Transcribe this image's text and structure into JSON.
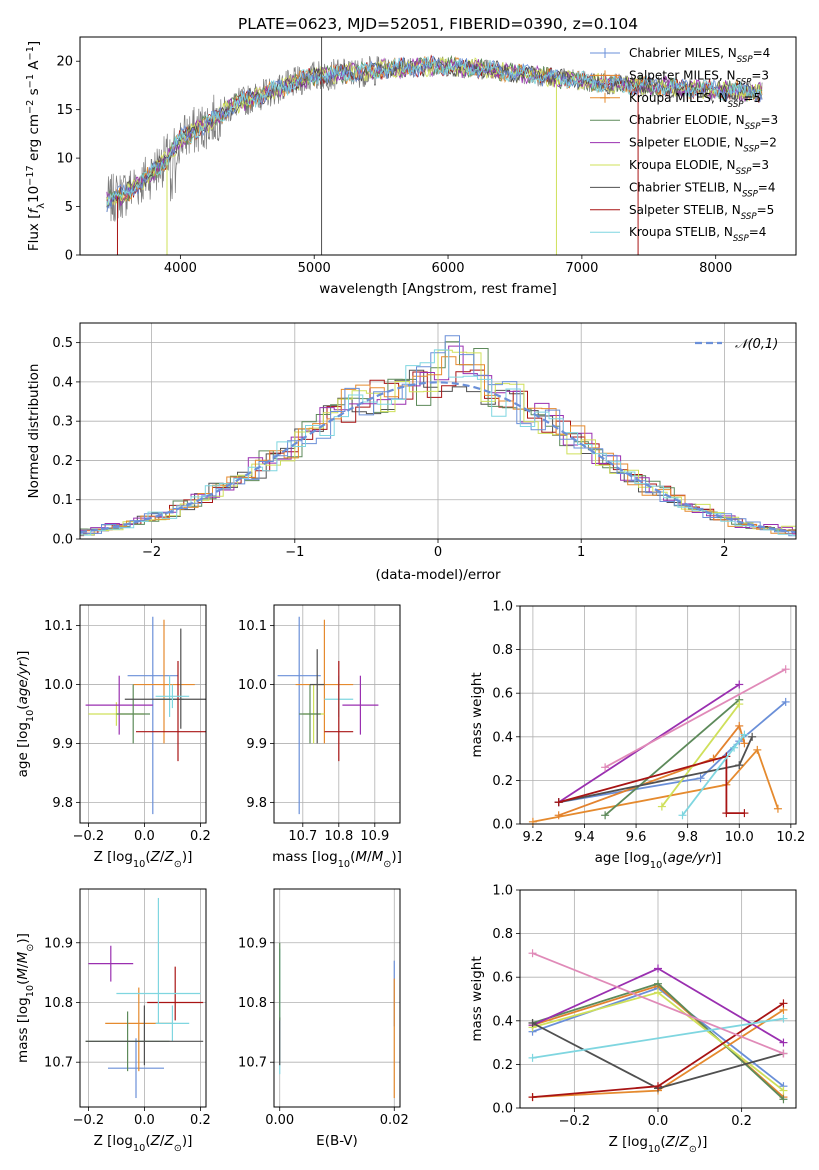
{
  "figure": {
    "title": "PLATE=0623, MJD=52051, FIBERID=0390, z=0.104"
  },
  "model_colors": [
    "#6a8fd8",
    "#e3822e",
    "#e58a2e",
    "#5d8a5a",
    "#9a2fb0",
    "#cfe05a",
    "#505050",
    "#a81414",
    "#7fd6e0"
  ],
  "chart_data": [
    {
      "id": "spectrum",
      "type": "line",
      "xlabel": "wavelength [Angstrom, rest frame]",
      "ylabel": "Flux [f_λ 10^-17 erg cm^-2 s^-1 A^-1]",
      "xlim": [
        3250,
        8600
      ],
      "ylim": [
        0,
        22.5
      ],
      "xticks": [
        4000,
        5000,
        6000,
        7000,
        8000
      ],
      "yticks": [
        0,
        5,
        10,
        15,
        20
      ],
      "grid": false,
      "legend_position": "top-right",
      "legend": [
        {
          "label": "Chabrier MILES, N",
          "sub": "SSP",
          "value": "=4",
          "color": "#6a8fd8"
        },
        {
          "label": "Salpeter MILES, N",
          "sub": "SSP",
          "value": "=3",
          "color": "#e3822e"
        },
        {
          "label": "Kroupa MILES, N",
          "sub": "SSP",
          "value": "=5",
          "color": "#e58a2e"
        },
        {
          "label": "Chabrier ELODIE, N",
          "sub": "SSP",
          "value": "=3",
          "color": "#5d8a5a"
        },
        {
          "label": "Salpeter ELODIE, N",
          "sub": "SSP",
          "value": "=2",
          "color": "#9a2fb0"
        },
        {
          "label": "Kroupa ELODIE, N",
          "sub": "SSP",
          "value": "=3",
          "color": "#cfe05a"
        },
        {
          "label": "Chabrier STELIB, N",
          "sub": "SSP",
          "value": "=4",
          "color": "#505050"
        },
        {
          "label": "Salpeter STELIB, N",
          "sub": "SSP",
          "value": "=5",
          "color": "#a81414"
        },
        {
          "label": "Kroupa STELIB, N",
          "sub": "SSP",
          "value": "=4",
          "color": "#7fd6e0"
        }
      ],
      "continuum": [
        [
          3450,
          5.5
        ],
        [
          3600,
          6.5
        ],
        [
          3750,
          8
        ],
        [
          3900,
          10
        ],
        [
          4000,
          12
        ],
        [
          4200,
          13.5
        ],
        [
          4400,
          15.5
        ],
        [
          4700,
          17
        ],
        [
          5000,
          18.5
        ],
        [
          5300,
          18.8
        ],
        [
          5600,
          19.3
        ],
        [
          5900,
          19.5
        ],
        [
          6200,
          19.3
        ],
        [
          6500,
          18.8
        ],
        [
          6800,
          18.3
        ],
        [
          7100,
          17.8
        ],
        [
          7400,
          17.5
        ],
        [
          7700,
          17.3
        ],
        [
          8000,
          17
        ],
        [
          8350,
          16.8
        ]
      ],
      "wavelength_range": [
        3450,
        8350
      ]
    },
    {
      "id": "residuals",
      "type": "line",
      "xlabel": "(data-model)/error",
      "ylabel": "Normed distribution",
      "xlim": [
        -2.5,
        2.5
      ],
      "ylim": [
        0,
        0.55
      ],
      "xticks": [
        -2,
        -1,
        0,
        1,
        2
      ],
      "yticks": [
        0.0,
        0.1,
        0.2,
        0.3,
        0.4,
        0.5
      ],
      "grid": true,
      "legend_position": "top-right",
      "legend": [
        {
          "label": "𝒩(0,1)",
          "color": "#6a8fd8",
          "style": "dashed"
        }
      ],
      "bin_width": 0.1
    },
    {
      "id": "age-vs-z",
      "type": "scatter",
      "xlabel": "Z [log10(Z/Z⊙)]",
      "ylabel": "age [log10(age/yr)]",
      "xlim": [
        -0.23,
        0.22
      ],
      "ylim": [
        9.765,
        10.135
      ],
      "xticks": [
        -0.2,
        0.0,
        0.2
      ],
      "yticks": [
        9.8,
        9.9,
        10.0,
        10.1
      ],
      "grid": true,
      "points": [
        {
          "x": 0.03,
          "y": 10.015,
          "xerr": 0.09,
          "yerr_lo": 0.235,
          "yerr_hi": 0.1
        },
        {
          "x": 0.07,
          "y": 10.0,
          "xerr": 0.11,
          "yerr_lo": 0.1,
          "yerr_hi": 0.11
        },
        {
          "x": 0.09,
          "y": 9.975,
          "xerr": 0.05,
          "yerr_lo": 0.03,
          "yerr_hi": 0.04
        },
        {
          "x": -0.1,
          "y": 9.95,
          "xerr": 0.1,
          "yerr_lo": 0.02,
          "yerr_hi": 0.02
        },
        {
          "x": -0.09,
          "y": 9.965,
          "xerr": 0.12,
          "yerr_lo": 0.05,
          "yerr_hi": 0.05
        },
        {
          "x": -0.04,
          "y": 9.95,
          "xerr": 0.06,
          "yerr_lo": 0.05,
          "yerr_hi": 0.05
        },
        {
          "x": 0.13,
          "y": 9.975,
          "xerr": 0.2,
          "yerr_lo": 0.05,
          "yerr_hi": 0.12
        },
        {
          "x": 0.12,
          "y": 9.92,
          "xerr": 0.15,
          "yerr_lo": 0.05,
          "yerr_hi": 0.12
        },
        {
          "x": 0.1,
          "y": 9.98,
          "xerr": 0.06,
          "yerr_lo": 0.02,
          "yerr_hi": 0.02
        }
      ]
    },
    {
      "id": "age-vs-mass",
      "type": "scatter",
      "xlabel": "mass [log10(M/M⊙)]",
      "ylabel": "",
      "xlim": [
        10.62,
        10.97
      ],
      "ylim": [
        9.765,
        10.135
      ],
      "xticks": [
        10.7,
        10.8,
        10.9
      ],
      "yticks": [
        9.8,
        9.9,
        10.0,
        10.1
      ],
      "grid": true,
      "points": [
        {
          "x": 10.69,
          "y": 10.015,
          "xerr": 0.06,
          "yerr_lo": 0.235,
          "yerr_hi": 0.1
        },
        {
          "x": 10.76,
          "y": 10.0,
          "xerr": 0.08,
          "yerr_lo": 0.1,
          "yerr_hi": 0.11
        },
        {
          "x": 10.8,
          "y": 9.975,
          "xerr": 0.04,
          "yerr_lo": 0.03,
          "yerr_hi": 0.04
        },
        {
          "x": 10.73,
          "y": 9.95,
          "xerr": 0.03,
          "yerr_lo": 0.05,
          "yerr_hi": 0.05
        },
        {
          "x": 10.86,
          "y": 9.965,
          "xerr": 0.05,
          "yerr_lo": 0.05,
          "yerr_hi": 0.05
        },
        {
          "x": 10.72,
          "y": 9.95,
          "xerr": 0.03,
          "yerr_lo": 0.05,
          "yerr_hi": 0.05
        },
        {
          "x": 10.74,
          "y": 10.0,
          "xerr": 0.02,
          "yerr_lo": 0.1,
          "yerr_hi": 0.06
        },
        {
          "x": 10.8,
          "y": 9.92,
          "xerr": 0.04,
          "yerr_lo": 0.05,
          "yerr_hi": 0.12
        },
        {
          "x": 10.85,
          "y": 10.055,
          "xerr": 0.09,
          "yerr_lo": 0.06,
          "yerr_hi": 0.06
        }
      ]
    },
    {
      "id": "massweight-vs-age",
      "type": "line",
      "xlabel": "age [log10(age/yr)]",
      "ylabel": "mass weight",
      "xlim": [
        9.15,
        10.22
      ],
      "ylim": [
        0,
        1
      ],
      "xticks": [
        9.2,
        9.4,
        9.6,
        9.8,
        10.0,
        10.2
      ],
      "yticks": [
        0.0,
        0.2,
        0.4,
        0.6,
        0.8,
        1.0
      ],
      "grid": true,
      "series": [
        {
          "x": [
            9.3,
            9.85,
            10.0,
            10.18
          ],
          "y": [
            0.1,
            0.21,
            0.38,
            0.56
          ]
        },
        {
          "x": [
            9.2,
            9.95,
            10.07,
            10.15
          ],
          "y": [
            0.01,
            0.18,
            0.34,
            0.07
          ]
        },
        {
          "x": [
            9.3,
            9.9,
            10.0,
            10.02
          ],
          "y": [
            0.04,
            0.3,
            0.45,
            0.37
          ]
        },
        {
          "x": [
            9.48,
            10.0
          ],
          "y": [
            0.04,
            0.57
          ]
        },
        {
          "x": [
            9.3,
            10.0
          ],
          "y": [
            0.1,
            0.64
          ]
        },
        {
          "x": [
            9.7,
            10.0
          ],
          "y": [
            0.08,
            0.55
          ]
        },
        {
          "x": [
            9.3,
            10.0,
            10.05
          ],
          "y": [
            0.1,
            0.27,
            0.4
          ]
        },
        {
          "x": [
            9.3,
            9.95,
            9.95,
            10.02
          ],
          "y": [
            0.1,
            0.31,
            0.05,
            0.05
          ]
        },
        {
          "x": [
            9.78,
            9.98,
            10.02
          ],
          "y": [
            0.04,
            0.35,
            0.41
          ]
        },
        {
          "x": [
            9.48,
            10.18
          ],
          "y": [
            0.26,
            0.71
          ]
        }
      ]
    },
    {
      "id": "mass-vs-z",
      "type": "scatter",
      "xlabel": "Z [log10(Z/Z⊙)]",
      "ylabel": "mass [log10(M/M⊙)]",
      "xlim": [
        -0.23,
        0.22
      ],
      "ylim": [
        10.625,
        10.99
      ],
      "xticks": [
        -0.2,
        0.0,
        0.2
      ],
      "yticks": [
        10.7,
        10.8,
        10.9
      ],
      "grid": true,
      "points": [
        {
          "x": -0.03,
          "y": 10.69,
          "xerr": 0.1,
          "yerr_lo": 0.05,
          "yerr_hi": 0.05
        },
        {
          "x": -0.02,
          "y": 10.765,
          "xerr": 0.12,
          "yerr_lo": 0.08,
          "yerr_hi": 0.06
        },
        {
          "x": 0.1,
          "y": 10.765,
          "xerr": 0.06,
          "yerr_lo": 0.03,
          "yerr_hi": 0.03
        },
        {
          "x": -0.06,
          "y": 10.735,
          "xerr": 0.15,
          "yerr_lo": 0.05,
          "yerr_hi": 0.05
        },
        {
          "x": -0.12,
          "y": 10.865,
          "xerr": 0.08,
          "yerr_lo": 0.03,
          "yerr_hi": 0.03
        },
        {
          "x": -0.08,
          "y": 10.815,
          "xerr": 0.04,
          "yerr_lo": 0.05,
          "yerr_hi": 0.05
        },
        {
          "x": 0.0,
          "y": 10.735,
          "xerr": 0.21,
          "yerr_lo": 0.04,
          "yerr_hi": 0.06
        },
        {
          "x": 0.11,
          "y": 10.8,
          "xerr": 0.1,
          "yerr_lo": 0.03,
          "yerr_hi": 0.06
        },
        {
          "x": 0.05,
          "y": 10.815,
          "xerr": 0.15,
          "yerr_lo": 0.05,
          "yerr_hi": 0.16
        }
      ]
    },
    {
      "id": "mass-vs-ebv",
      "type": "scatter",
      "xlabel": "E(B-V)",
      "ylabel": "",
      "xlim": [
        -0.001,
        0.021
      ],
      "ylim": [
        10.625,
        10.99
      ],
      "xticks": [
        0.0,
        0.02
      ],
      "yticks": [
        10.7,
        10.8,
        10.9
      ],
      "grid": true,
      "points": [
        {
          "x": 0.02,
          "y": 10.8,
          "xerr": 0,
          "yerr_lo": 0.04,
          "yerr_hi": 0.07
        },
        {
          "x": 0.02,
          "y": 10.76,
          "xerr": 0,
          "yerr_lo": 0.12,
          "yerr_hi": 0.08
        },
        {
          "x": 0.0,
          "y": 10.79,
          "xerr": 0,
          "yerr_lo": 0.11,
          "yerr_hi": 0.1
        },
        {
          "x": 0.0,
          "y": 10.735,
          "xerr": 0,
          "yerr_lo": 0.04,
          "yerr_hi": 0.04
        },
        {
          "x": 0.0,
          "y": 10.82,
          "xerr": 0,
          "yerr_lo": 0.05,
          "yerr_hi": 0.08
        },
        {
          "x": 0.006,
          "y": 10.85,
          "xerr": 0,
          "yerr_lo": 0.12,
          "yerr_hi": 0.12
        }
      ]
    },
    {
      "id": "massweight-vs-z",
      "type": "line",
      "xlabel": "Z [log10(Z/Z⊙)]",
      "ylabel": "mass weight",
      "xlim": [
        -0.33,
        0.33
      ],
      "ylim": [
        0,
        1
      ],
      "xticks": [
        -0.2,
        0.0,
        0.2
      ],
      "yticks": [
        0.0,
        0.2,
        0.4,
        0.6,
        0.8,
        1.0
      ],
      "grid": true,
      "series": [
        {
          "x": [
            -0.3,
            0.0,
            0.3
          ],
          "y": [
            0.35,
            0.55,
            0.1
          ]
        },
        {
          "x": [
            -0.3,
            0.0,
            0.3
          ],
          "y": [
            0.05,
            0.08,
            0.45
          ]
        },
        {
          "x": [
            -0.3,
            0.0,
            0.3
          ],
          "y": [
            0.38,
            0.56,
            0.05
          ]
        },
        {
          "x": [
            -0.3,
            0.0,
            0.3
          ],
          "y": [
            0.39,
            0.57,
            0.04
          ]
        },
        {
          "x": [
            -0.3,
            0.0,
            0.3
          ],
          "y": [
            0.38,
            0.64,
            0.3
          ]
        },
        {
          "x": [
            -0.3,
            0.0,
            0.3
          ],
          "y": [
            0.37,
            0.53,
            0.08
          ]
        },
        {
          "x": [
            -0.3,
            0.0,
            0.3
          ],
          "y": [
            0.39,
            0.09,
            0.25
          ]
        },
        {
          "x": [
            -0.3,
            0.0,
            0.3
          ],
          "y": [
            0.05,
            0.1,
            0.48
          ]
        },
        {
          "x": [
            -0.3,
            0.3
          ],
          "y": [
            0.23,
            0.41
          ]
        },
        {
          "x": [
            -0.3,
            0.3
          ],
          "y": [
            0.71,
            0.25
          ]
        }
      ]
    }
  ]
}
